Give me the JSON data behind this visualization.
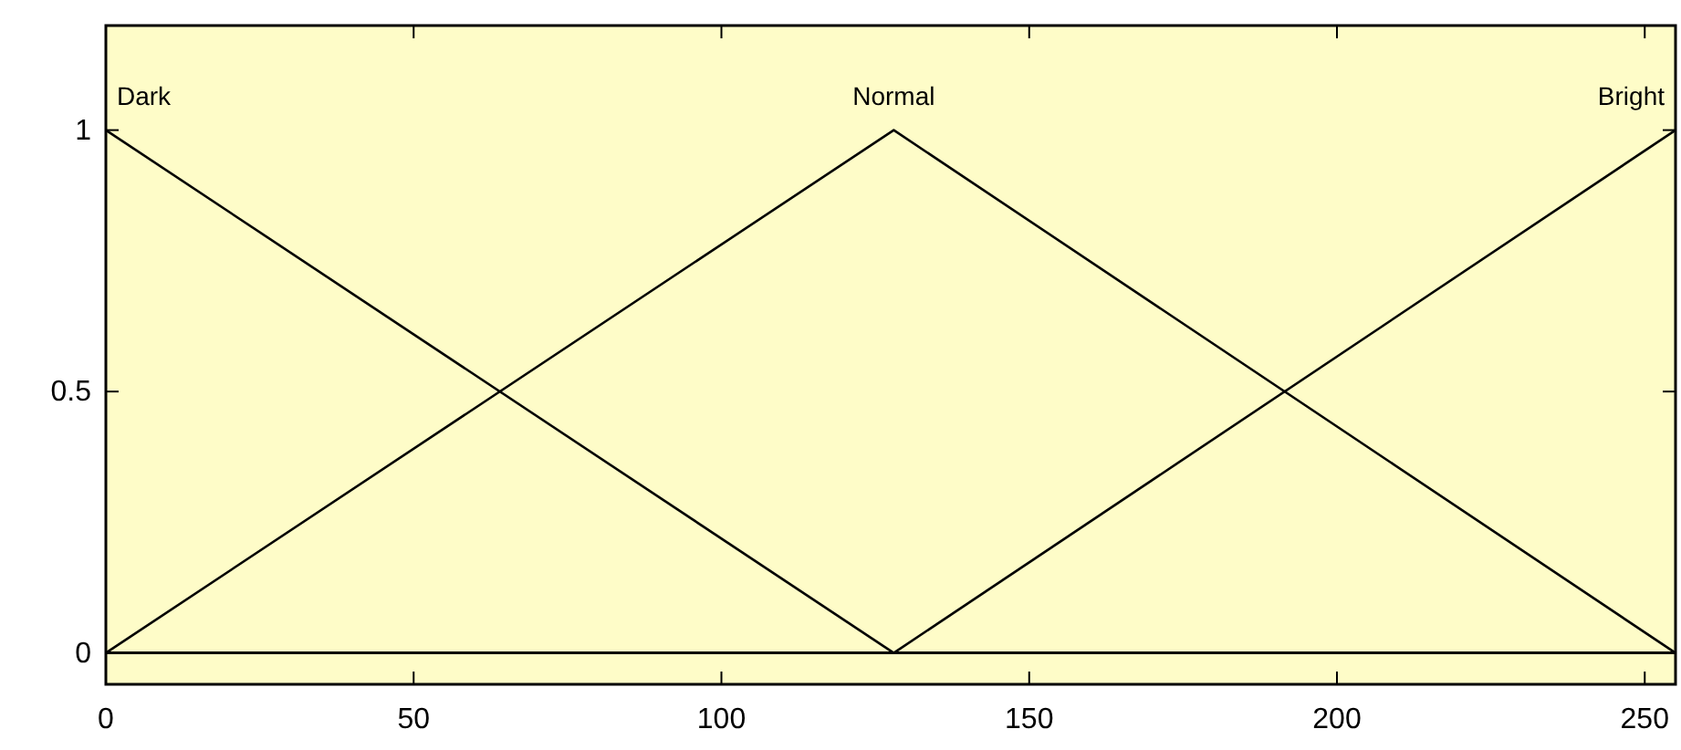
{
  "chart_data": {
    "type": "line",
    "xlim": [
      0,
      255
    ],
    "ylim": [
      -0.06,
      1.2
    ],
    "xticks": [
      0,
      50,
      100,
      150,
      200,
      250
    ],
    "yticks": [
      0,
      0.5,
      1
    ],
    "ref_lines": [
      {
        "axis": "y",
        "value": 0,
        "color": "#000000"
      }
    ],
    "marker": "none",
    "line_style": "solid",
    "series": [
      {
        "name": "Dark",
        "color": "#000000",
        "x": [
          0,
          128
        ],
        "values": [
          1,
          0
        ]
      },
      {
        "name": "Normal",
        "color": "#000000",
        "x": [
          0,
          128,
          255
        ],
        "values": [
          0,
          1,
          0
        ]
      },
      {
        "name": "Bright",
        "color": "#000000",
        "x": [
          128,
          255
        ],
        "values": [
          0,
          1
        ]
      }
    ]
  }
}
